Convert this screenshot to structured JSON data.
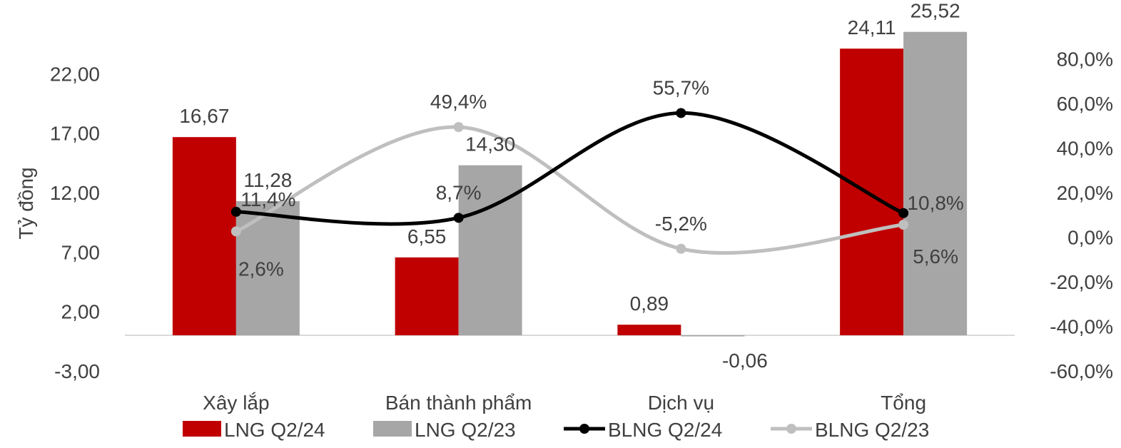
{
  "chart_data": {
    "type": "bar",
    "ylabel": "Tỷ đồng",
    "categories": [
      "Xây lắp",
      "Bán thành phẩm",
      "Dịch vụ",
      "Tổng"
    ],
    "y_left": {
      "ylim": [
        -3,
        27
      ],
      "ticks": [
        -3,
        2,
        7,
        12,
        17,
        22
      ],
      "tick_labels": [
        "-3,00",
        "2,00",
        "7,00",
        "12,00",
        "17,00",
        "22,00"
      ]
    },
    "y_right": {
      "ylim": [
        -60,
        100
      ],
      "ticks": [
        -60,
        -40,
        -20,
        0,
        20,
        40,
        60,
        80
      ],
      "tick_labels": [
        "-60,0%",
        "-40,0%",
        "-20,0%",
        "0,0%",
        "20,0%",
        "40,0%",
        "60,0%",
        "80,0%"
      ]
    },
    "bar_series": [
      {
        "name": "LNG Q2/24",
        "color": "#c00000",
        "values": [
          16.67,
          6.55,
          0.89,
          24.11
        ],
        "labels": [
          "16,67",
          "6,55",
          "0,89",
          "24,11"
        ]
      },
      {
        "name": "LNG Q2/23",
        "color": "#a6a6a6",
        "values": [
          11.28,
          14.3,
          -0.06,
          25.52
        ],
        "labels": [
          "11,28",
          "14,30",
          "-0,06",
          "25,52"
        ]
      }
    ],
    "line_series": [
      {
        "name": "BLNG Q2/24",
        "color": "#000000",
        "values": [
          11.4,
          8.7,
          55.7,
          10.8
        ],
        "labels": [
          "11,4%",
          "8,7%",
          "55,7%",
          "10,8%"
        ]
      },
      {
        "name": "BLNG Q2/23",
        "color": "#bfbfbf",
        "values": [
          2.6,
          49.4,
          -5.2,
          5.6
        ],
        "labels": [
          "2,6%",
          "49,4%",
          "-5,2%",
          "5,6%"
        ]
      }
    ],
    "legend_position": "bottom",
    "grid": false
  }
}
